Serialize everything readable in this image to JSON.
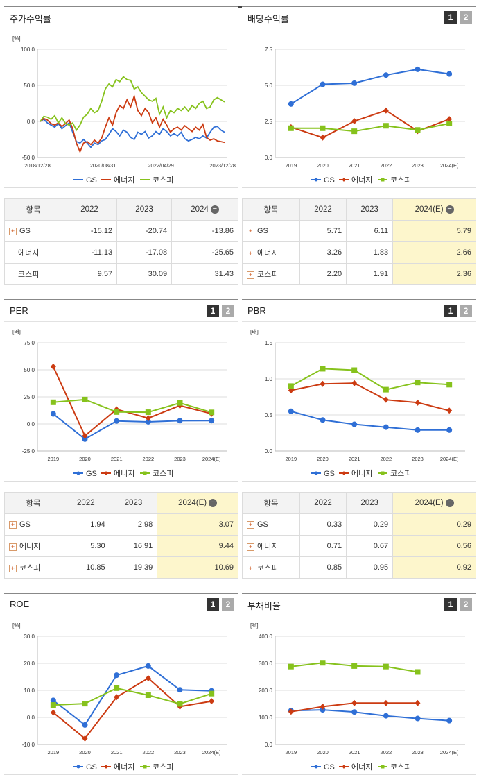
{
  "colors": {
    "gs": "#2f6fd6",
    "energy": "#cc3b12",
    "kospi": "#86c21c",
    "highlight": "#fdf6cc"
  },
  "pager": {
    "p1": "1",
    "p2": "2"
  },
  "legend": {
    "gs": "GS",
    "energy": "에너지",
    "kospi": "코스피"
  },
  "table_header": {
    "item": "항목"
  },
  "stock_return": {
    "title": "주가수익률",
    "unit": "[%]",
    "y_ticks": [
      "100.0",
      "50.0",
      "0.0",
      "-50.0"
    ],
    "x_ticks": [
      "2018/12/28",
      "2020/08/31",
      "2022/04/29",
      "2023/12/28"
    ],
    "table": {
      "years": [
        "2022",
        "2023",
        "2024"
      ],
      "rows": [
        {
          "name": "GS",
          "values": [
            "-15.12",
            "-20.74",
            "-13.86"
          ]
        },
        {
          "name": "에너지",
          "values": [
            "-11.13",
            "-17.08",
            "-25.65"
          ]
        },
        {
          "name": "코스피",
          "values": [
            "9.57",
            "30.09",
            "31.43"
          ]
        }
      ]
    }
  },
  "dividend": {
    "title": "배당수익률",
    "table": {
      "years": [
        "2022",
        "2023",
        "2024(E)"
      ],
      "rows": [
        {
          "name": "GS",
          "values": [
            "5.71",
            "6.11",
            "5.79"
          ]
        },
        {
          "name": "에너지",
          "values": [
            "3.26",
            "1.83",
            "2.66"
          ]
        },
        {
          "name": "코스피",
          "values": [
            "2.20",
            "1.91",
            "2.36"
          ]
        }
      ]
    }
  },
  "per": {
    "title": "PER",
    "table": {
      "years": [
        "2022",
        "2023",
        "2024(E)"
      ],
      "rows": [
        {
          "name": "GS",
          "values": [
            "1.94",
            "2.98",
            "3.07"
          ]
        },
        {
          "name": "에너지",
          "values": [
            "5.30",
            "16.91",
            "9.44"
          ]
        },
        {
          "name": "코스피",
          "values": [
            "10.85",
            "19.39",
            "10.69"
          ]
        }
      ]
    }
  },
  "pbr": {
    "title": "PBR",
    "table": {
      "years": [
        "2022",
        "2023",
        "2024(E)"
      ],
      "rows": [
        {
          "name": "GS",
          "values": [
            "0.33",
            "0.29",
            "0.29"
          ]
        },
        {
          "name": "에너지",
          "values": [
            "0.71",
            "0.67",
            "0.56"
          ]
        },
        {
          "name": "코스피",
          "values": [
            "0.85",
            "0.95",
            "0.92"
          ]
        }
      ]
    }
  },
  "roe": {
    "title": "ROE"
  },
  "debt": {
    "title": "부채비율"
  },
  "chart_data": [
    {
      "id": "stock_return",
      "type": "line",
      "title": "주가수익률",
      "ylabel": "[%]",
      "ylim": [
        -50,
        100
      ],
      "y_ticks": [
        100,
        50,
        0,
        -50
      ],
      "x_ticks": [
        "2018/12/28",
        "2020/08/31",
        "2022/04/29",
        "2023/12/28"
      ],
      "series": [
        {
          "name": "GS",
          "key": "gs",
          "values": [
            0,
            3,
            -2,
            -5,
            -8,
            -3,
            -10,
            -6,
            -2,
            -15,
            -28,
            -30,
            -25,
            -30,
            -36,
            -30,
            -32,
            -27,
            -25,
            -18,
            -10,
            -14,
            -20,
            -12,
            -15,
            -22,
            -25,
            -15,
            -18,
            -14,
            -23,
            -20,
            -14,
            -18,
            -10,
            -14,
            -20,
            -17,
            -20,
            -15,
            -24,
            -27,
            -25,
            -22,
            -24,
            -20,
            -23,
            -15,
            -8,
            -7,
            -12,
            -15
          ]
        },
        {
          "name": "에너지",
          "key": "energy",
          "values": [
            0,
            4,
            2,
            -3,
            -5,
            -2,
            -7,
            -3,
            2,
            -10,
            -30,
            -42,
            -30,
            -28,
            -32,
            -26,
            -30,
            -23,
            -8,
            5,
            -5,
            12,
            22,
            18,
            30,
            20,
            35,
            15,
            8,
            18,
            12,
            -2,
            5,
            -8,
            3,
            -5,
            -15,
            -10,
            -8,
            -12,
            -6,
            -10,
            -14,
            -8,
            -12,
            -4,
            -22,
            -26,
            -24,
            -27,
            -28,
            -29
          ]
        },
        {
          "name": "코스피",
          "key": "kospi",
          "values": [
            0,
            7,
            6,
            3,
            8,
            -2,
            5,
            -3,
            -5,
            -2,
            -12,
            -5,
            6,
            10,
            18,
            12,
            15,
            28,
            45,
            52,
            48,
            58,
            55,
            62,
            58,
            57,
            45,
            48,
            40,
            35,
            30,
            28,
            32,
            10,
            20,
            5,
            15,
            12,
            18,
            15,
            20,
            14,
            22,
            18,
            25,
            28,
            18,
            20,
            30,
            33,
            30,
            27
          ]
        }
      ]
    },
    {
      "id": "dividend",
      "type": "line",
      "title": "배당수익률",
      "ylim": [
        0,
        7.5
      ],
      "y_ticks": [
        7.5,
        5.0,
        2.5,
        0.0
      ],
      "x": [
        "2019",
        "2020",
        "2021",
        "2022",
        "2023",
        "2024(E)"
      ],
      "series": [
        {
          "name": "GS",
          "key": "gs",
          "values": [
            3.71,
            5.07,
            5.15,
            5.71,
            6.11,
            5.79
          ]
        },
        {
          "name": "에너지",
          "key": "energy",
          "values": [
            2.1,
            1.38,
            2.52,
            3.26,
            1.83,
            2.66
          ]
        },
        {
          "name": "코스피",
          "key": "kospi",
          "values": [
            2.03,
            2.03,
            1.82,
            2.2,
            1.91,
            2.36
          ]
        }
      ]
    },
    {
      "id": "per",
      "type": "line",
      "title": "PER",
      "ylabel": "[배]",
      "ylim": [
        -25,
        75
      ],
      "y_ticks": [
        75.0,
        50.0,
        25.0,
        0.0,
        -25.0
      ],
      "x": [
        "2019",
        "2020",
        "2021",
        "2022",
        "2023",
        "2024(E)"
      ],
      "series": [
        {
          "name": "GS",
          "key": "gs",
          "values": [
            9.3,
            -14.0,
            2.7,
            1.94,
            2.98,
            3.07
          ]
        },
        {
          "name": "에너지",
          "key": "energy",
          "values": [
            53.0,
            -11.0,
            13.5,
            5.3,
            16.91,
            9.44
          ]
        },
        {
          "name": "코스피",
          "key": "kospi",
          "values": [
            20.0,
            22.5,
            11.0,
            10.85,
            19.39,
            10.69
          ]
        }
      ]
    },
    {
      "id": "pbr",
      "type": "line",
      "title": "PBR",
      "ylabel": "[배]",
      "ylim": [
        0,
        1.5
      ],
      "y_ticks": [
        1.5,
        1.0,
        0.5,
        0.0
      ],
      "x": [
        "2019",
        "2020",
        "2021",
        "2022",
        "2023",
        "2024(E)"
      ],
      "series": [
        {
          "name": "GS",
          "key": "gs",
          "values": [
            0.55,
            0.43,
            0.37,
            0.33,
            0.29,
            0.29
          ]
        },
        {
          "name": "에너지",
          "key": "energy",
          "values": [
            0.84,
            0.93,
            0.94,
            0.71,
            0.67,
            0.56
          ]
        },
        {
          "name": "코스피",
          "key": "kospi",
          "values": [
            0.9,
            1.14,
            1.12,
            0.85,
            0.95,
            0.92
          ]
        }
      ]
    },
    {
      "id": "roe",
      "type": "line",
      "title": "ROE",
      "ylabel": "[%]",
      "ylim": [
        -10,
        30
      ],
      "y_ticks": [
        30.0,
        20.0,
        10.0,
        0.0,
        -10.0
      ],
      "x": [
        "2019",
        "2020",
        "2021",
        "2022",
        "2023",
        "2024(E)"
      ],
      "series": [
        {
          "name": "GS",
          "key": "gs",
          "values": [
            6.3,
            -2.8,
            15.6,
            19.0,
            10.2,
            9.8
          ]
        },
        {
          "name": "에너지",
          "key": "energy",
          "values": [
            1.8,
            -7.8,
            7.5,
            14.5,
            4.0,
            6.0
          ]
        },
        {
          "name": "코스피",
          "key": "kospi",
          "values": [
            4.6,
            5.1,
            10.8,
            8.2,
            5.0,
            8.8
          ]
        }
      ]
    },
    {
      "id": "debt",
      "type": "line",
      "title": "부채비율",
      "ylabel": "[%]",
      "ylim": [
        0,
        400
      ],
      "y_ticks": [
        400.0,
        300.0,
        200.0,
        100.0,
        0.0
      ],
      "x": [
        "2019",
        "2020",
        "2021",
        "2022",
        "2023",
        "2024(E)"
      ],
      "series": [
        {
          "name": "GS",
          "key": "gs",
          "values": [
            125,
            128,
            120,
            106,
            96,
            88
          ]
        },
        {
          "name": "에너지",
          "key": "energy",
          "values": [
            121,
            140,
            153,
            153,
            153,
            null
          ]
        },
        {
          "name": "코스피",
          "key": "kospi",
          "values": [
            288,
            302,
            290,
            288,
            268,
            null
          ]
        }
      ]
    }
  ]
}
